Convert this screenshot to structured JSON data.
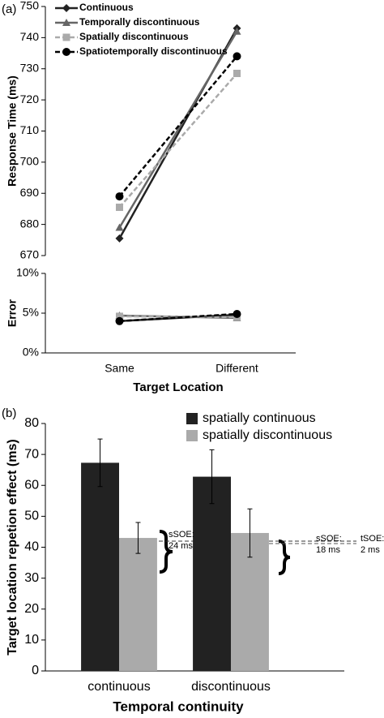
{
  "chart_data": [
    {
      "type": "line",
      "panel_label": "(a)",
      "ylabel": "Response Time (ms)",
      "ylim": [
        670,
        750
      ],
      "yticks": [
        670,
        680,
        690,
        700,
        710,
        720,
        730,
        740,
        750
      ],
      "series": [
        {
          "name": "Continuous",
          "color": "#222222",
          "marker": "diamond",
          "dashed": false,
          "values": [
            675.5,
            743
          ]
        },
        {
          "name": "Temporally discontinuous",
          "color": "#666666",
          "marker": "triangle",
          "dashed": false,
          "values": [
            679,
            742
          ]
        },
        {
          "name": "Spatially discontinuous",
          "color": "#aaaaaa",
          "marker": "square",
          "dashed": true,
          "values": [
            685.5,
            728.5
          ]
        },
        {
          "name": "Spatiotemporally discontinuous",
          "color": "#000000",
          "marker": "circle",
          "dashed": true,
          "values": [
            689,
            734
          ]
        }
      ]
    },
    {
      "type": "line",
      "ylabel": "Error",
      "xlabel": "Target Location",
      "categories": [
        "Same",
        "Different"
      ],
      "ylim": [
        0,
        10
      ],
      "yticks": [
        {
          "value": 0,
          "label": "0%"
        },
        {
          "value": 5,
          "label": "5%"
        },
        {
          "value": 10,
          "label": "10%"
        }
      ],
      "series": [
        {
          "color": "#222222",
          "marker": "diamond",
          "dashed": false,
          "values": [
            4.0,
            4.8
          ]
        },
        {
          "color": "#666666",
          "marker": "triangle",
          "dashed": false,
          "values": [
            4.7,
            4.4
          ]
        },
        {
          "color": "#aaaaaa",
          "marker": "square",
          "dashed": true,
          "values": [
            4.6,
            4.5
          ]
        },
        {
          "color": "#000000",
          "marker": "circle",
          "dashed": true,
          "values": [
            4.0,
            4.9
          ]
        }
      ]
    },
    {
      "type": "bar",
      "panel_label": "(b)",
      "ylabel": "Target location repetion effect (ms)",
      "xlabel": "Temporal continuity",
      "categories": [
        "continuous",
        "discontinuous"
      ],
      "ylim": [
        0,
        80
      ],
      "yticks": [
        0,
        10,
        20,
        30,
        40,
        50,
        60,
        70,
        80
      ],
      "series": [
        {
          "name": "spatially continuous",
          "color": "#222222",
          "values": [
            67.3,
            62.8
          ],
          "errors": [
            7.7,
            8.7
          ]
        },
        {
          "name": "spatially discontinuous",
          "color": "#aaaaaa",
          "values": [
            43,
            44.6
          ],
          "errors": [
            5,
            7.8
          ]
        }
      ],
      "annotations": [
        "sSOE:",
        "24 ms",
        "sSOE:",
        "18 ms",
        "tSOE:",
        "2 ms"
      ]
    }
  ]
}
